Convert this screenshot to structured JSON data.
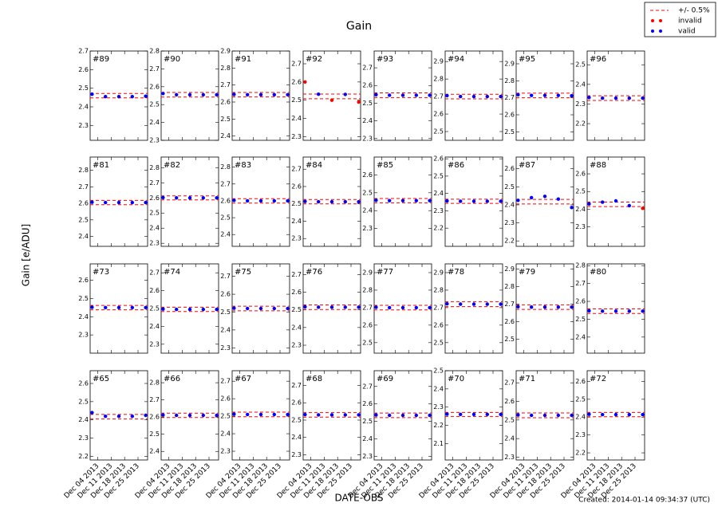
{
  "title": "Gain",
  "ylabel": "Gain [e/ADU]",
  "xlabel": "DATE-OBS",
  "footnote": "Created: 2014-01-14 09:34:37 (UTC)",
  "legend": [
    {
      "name": "+/- 0.5%",
      "color": "#ff0000"
    },
    {
      "name": "invalid",
      "color": "#ff0000"
    },
    {
      "name": "valid",
      "color": "#0000ff"
    }
  ],
  "x": [
    "2013-12-01",
    "2013-12-08",
    "2013-12-15",
    "2013-12-22",
    "2013-12-29"
  ],
  "xlim": [
    "2013-11-30",
    "2013-12-30"
  ],
  "xticks": [
    {
      "value": "2013-12-04",
      "label": "Dec 04 2013"
    },
    {
      "value": "2013-12-11",
      "label": "Dec 11 2013"
    },
    {
      "value": "2013-12-18",
      "label": "Dec 18 2013"
    },
    {
      "value": "2013-12-25",
      "label": "Dec 25 2013"
    }
  ],
  "chart_data": [
    {
      "type": "scatter",
      "title": "#89",
      "ylim": [
        2.22,
        2.7
      ],
      "yticks": [
        2.3,
        2.4,
        2.5,
        2.6,
        2.7
      ],
      "band": [
        2.448,
        2.472
      ],
      "valid": [
        2.468,
        2.455,
        2.455,
        2.455,
        2.457
      ]
    },
    {
      "type": "scatter",
      "title": "#90",
      "ylim": [
        2.3,
        2.8
      ],
      "yticks": [
        2.3,
        2.4,
        2.5,
        2.6,
        2.7,
        2.8
      ],
      "band": [
        2.542,
        2.568
      ],
      "valid": [
        2.562,
        2.555,
        2.555,
        2.555,
        2.555
      ]
    },
    {
      "type": "scatter",
      "title": "#91",
      "ylim": [
        2.375,
        2.9
      ],
      "yticks": [
        2.4,
        2.5,
        2.6,
        2.7,
        2.8,
        2.9
      ],
      "band": [
        2.63,
        2.656
      ],
      "valid": [
        2.645,
        2.643,
        2.643,
        2.643,
        2.643
      ]
    },
    {
      "type": "scatter",
      "title": "#92",
      "ylim": [
        2.28,
        2.77
      ],
      "yticks": [
        2.3,
        2.4,
        2.5,
        2.6,
        2.7
      ],
      "band": [
        2.508,
        2.534
      ],
      "valid": [
        null,
        2.533,
        null,
        2.532,
        null
      ],
      "invalid": [
        2.6,
        null,
        2.5,
        null,
        2.49
      ]
    },
    {
      "type": "scatter",
      "title": "#93",
      "ylim": [
        2.29,
        2.795
      ],
      "yticks": [
        2.3,
        2.4,
        2.5,
        2.6,
        2.7
      ],
      "band": [
        2.532,
        2.558
      ],
      "valid": [
        2.548,
        2.545,
        2.545,
        2.545,
        2.545
      ]
    },
    {
      "type": "scatter",
      "title": "#94",
      "ylim": [
        2.45,
        2.96
      ],
      "yticks": [
        2.5,
        2.6,
        2.7,
        2.8,
        2.9
      ],
      "band": [
        2.687,
        2.713
      ],
      "valid": [
        2.705,
        2.7,
        2.7,
        2.7,
        2.7
      ]
    },
    {
      "type": "scatter",
      "title": "#95",
      "ylim": [
        2.45,
        2.975
      ],
      "yticks": [
        2.5,
        2.6,
        2.7,
        2.8,
        2.9
      ],
      "band": [
        2.7,
        2.727
      ],
      "valid": [
        2.718,
        2.714,
        2.714,
        2.714,
        2.712
      ]
    },
    {
      "type": "scatter",
      "title": "#96",
      "ylim": [
        2.115,
        2.57
      ],
      "yticks": [
        2.2,
        2.3,
        2.4,
        2.5
      ],
      "band": [
        2.318,
        2.342
      ],
      "valid": [
        2.333,
        2.33,
        2.33,
        2.33,
        2.33
      ]
    },
    {
      "type": "scatter",
      "title": "#81",
      "ylim": [
        2.34,
        2.88
      ],
      "yticks": [
        2.4,
        2.5,
        2.6,
        2.7,
        2.8
      ],
      "band": [
        2.592,
        2.618
      ],
      "valid": [
        2.607,
        2.605,
        2.605,
        2.605,
        2.605
      ]
    },
    {
      "type": "scatter",
      "title": "#82",
      "ylim": [
        2.28,
        2.87
      ],
      "yticks": [
        2.3,
        2.4,
        2.5,
        2.6,
        2.7,
        2.8
      ],
      "band": [
        2.587,
        2.613
      ],
      "valid": [
        2.602,
        2.6,
        2.6,
        2.6,
        2.6
      ]
    },
    {
      "type": "scatter",
      "title": "#83",
      "ylim": [
        2.33,
        2.86
      ],
      "yticks": [
        2.4,
        2.5,
        2.6,
        2.7,
        2.8
      ],
      "band": [
        2.587,
        2.613
      ],
      "valid": [
        2.603,
        2.6,
        2.6,
        2.6,
        2.6
      ]
    },
    {
      "type": "scatter",
      "title": "#84",
      "ylim": [
        2.255,
        2.77
      ],
      "yticks": [
        2.3,
        2.4,
        2.5,
        2.6,
        2.7
      ],
      "band": [
        2.5,
        2.525
      ],
      "valid": [
        2.514,
        2.512,
        2.512,
        2.512,
        2.512
      ]
    },
    {
      "type": "scatter",
      "title": "#85",
      "ylim": [
        2.2,
        2.7
      ],
      "yticks": [
        2.3,
        2.4,
        2.5,
        2.6
      ],
      "band": [
        2.444,
        2.468
      ],
      "valid": [
        2.458,
        2.456,
        2.456,
        2.456,
        2.456
      ]
    },
    {
      "type": "scatter",
      "title": "#86",
      "ylim": [
        2.095,
        2.61
      ],
      "yticks": [
        2.2,
        2.3,
        2.4,
        2.5,
        2.6
      ],
      "band": [
        2.343,
        2.367
      ],
      "valid": [
        2.357,
        2.355,
        2.355,
        2.355,
        2.355
      ]
    },
    {
      "type": "scatter",
      "title": "#87",
      "ylim": [
        2.17,
        2.665
      ],
      "yticks": [
        2.2,
        2.3,
        2.4,
        2.5,
        2.6
      ],
      "band": [
        2.405,
        2.43
      ],
      "valid": [
        2.425,
        2.44,
        2.447,
        2.432,
        2.385
      ]
    },
    {
      "type": "scatter",
      "title": "#88",
      "ylim": [
        2.19,
        2.695
      ],
      "yticks": [
        2.3,
        2.4,
        2.5,
        2.6
      ],
      "band": [
        2.415,
        2.44
      ],
      "valid": [
        2.43,
        2.44,
        2.447,
        2.42,
        null
      ],
      "invalid": [
        null,
        null,
        null,
        null,
        2.405
      ]
    },
    {
      "type": "scatter",
      "title": "#73",
      "ylim": [
        2.2,
        2.69
      ],
      "yticks": [
        2.3,
        2.4,
        2.5,
        2.6
      ],
      "band": [
        2.438,
        2.462
      ],
      "valid": [
        2.452,
        2.45,
        2.45,
        2.45,
        2.45
      ]
    },
    {
      "type": "scatter",
      "title": "#74",
      "ylim": [
        2.25,
        2.75
      ],
      "yticks": [
        2.3,
        2.4,
        2.5,
        2.6,
        2.7
      ],
      "band": [
        2.483,
        2.507
      ],
      "valid": [
        2.497,
        2.495,
        2.495,
        2.495,
        2.495
      ]
    },
    {
      "type": "scatter",
      "title": "#75",
      "ylim": [
        2.27,
        2.77
      ],
      "yticks": [
        2.3,
        2.4,
        2.5,
        2.6,
        2.7
      ],
      "band": [
        2.507,
        2.533
      ],
      "valid": [
        2.522,
        2.52,
        2.52,
        2.52,
        2.52
      ]
    },
    {
      "type": "scatter",
      "title": "#76",
      "ylim": [
        2.255,
        2.76
      ],
      "yticks": [
        2.3,
        2.4,
        2.5,
        2.6,
        2.7
      ],
      "band": [
        2.502,
        2.528
      ],
      "valid": [
        2.517,
        2.515,
        2.515,
        2.515,
        2.515
      ]
    },
    {
      "type": "scatter",
      "title": "#77",
      "ylim": [
        2.44,
        2.95
      ],
      "yticks": [
        2.5,
        2.6,
        2.7,
        2.8,
        2.9
      ],
      "band": [
        2.687,
        2.713
      ],
      "valid": [
        2.702,
        2.7,
        2.7,
        2.7,
        2.7
      ]
    },
    {
      "type": "scatter",
      "title": "#78",
      "ylim": [
        2.44,
        2.95
      ],
      "yticks": [
        2.5,
        2.6,
        2.7,
        2.8,
        2.9
      ],
      "band": [
        2.706,
        2.734
      ],
      "valid": [
        2.722,
        2.72,
        2.72,
        2.72,
        2.72
      ]
    },
    {
      "type": "scatter",
      "title": "#79",
      "ylim": [
        2.42,
        2.93
      ],
      "yticks": [
        2.5,
        2.6,
        2.7,
        2.8,
        2.9
      ],
      "band": [
        2.67,
        2.696
      ],
      "valid": [
        2.685,
        2.683,
        2.683,
        2.683,
        2.683
      ]
    },
    {
      "type": "scatter",
      "title": "#80",
      "ylim": [
        2.31,
        2.81
      ],
      "yticks": [
        2.4,
        2.5,
        2.6,
        2.7,
        2.8
      ],
      "band": [
        2.532,
        2.558
      ],
      "valid": [
        2.547,
        2.545,
        2.545,
        2.545,
        2.545
      ]
    },
    {
      "type": "scatter",
      "title": "#65",
      "ylim": [
        2.18,
        2.67
      ],
      "yticks": [
        2.2,
        2.3,
        2.4,
        2.5,
        2.6
      ],
      "band": [
        2.405,
        2.43
      ],
      "valid": [
        2.44,
        2.42,
        2.42,
        2.42,
        2.425
      ]
    },
    {
      "type": "scatter",
      "title": "#66",
      "ylim": [
        2.35,
        2.87
      ],
      "yticks": [
        2.4,
        2.5,
        2.6,
        2.7,
        2.8
      ],
      "band": [
        2.597,
        2.623
      ],
      "valid": [
        2.612,
        2.61,
        2.61,
        2.61,
        2.61
      ]
    },
    {
      "type": "scatter",
      "title": "#67",
      "ylim": [
        2.25,
        2.76
      ],
      "yticks": [
        2.3,
        2.4,
        2.5,
        2.6,
        2.7
      ],
      "band": [
        2.497,
        2.523
      ],
      "valid": [
        2.512,
        2.51,
        2.51,
        2.51,
        2.51
      ]
    },
    {
      "type": "scatter",
      "title": "#68",
      "ylim": [
        2.27,
        2.785
      ],
      "yticks": [
        2.3,
        2.4,
        2.5,
        2.6,
        2.7
      ],
      "band": [
        2.517,
        2.543
      ],
      "valid": [
        2.532,
        2.53,
        2.53,
        2.53,
        2.53
      ]
    },
    {
      "type": "scatter",
      "title": "#69",
      "ylim": [
        2.28,
        2.79
      ],
      "yticks": [
        2.3,
        2.4,
        2.5,
        2.6,
        2.7
      ],
      "band": [
        2.522,
        2.548
      ],
      "valid": [
        2.537,
        2.535,
        2.535,
        2.535,
        2.535
      ]
    },
    {
      "type": "scatter",
      "title": "#70",
      "ylim": [
        2.01,
        2.5
      ],
      "yticks": [
        2.1,
        2.2,
        2.3,
        2.4,
        2.5
      ],
      "band": [
        2.249,
        2.271
      ],
      "valid": [
        2.262,
        2.26,
        2.26,
        2.26,
        2.26
      ]
    },
    {
      "type": "scatter",
      "title": "#71",
      "ylim": [
        2.285,
        2.765
      ],
      "yticks": [
        2.3,
        2.4,
        2.5,
        2.6,
        2.7
      ],
      "band": [
        2.512,
        2.538
      ],
      "valid": [
        2.527,
        2.525,
        2.525,
        2.525,
        2.525
      ]
    },
    {
      "type": "scatter",
      "title": "#72",
      "ylim": [
        2.16,
        2.66
      ],
      "yticks": [
        2.2,
        2.3,
        2.4,
        2.5,
        2.6
      ],
      "band": [
        2.402,
        2.426
      ],
      "valid": [
        2.416,
        2.414,
        2.414,
        2.414,
        2.414
      ]
    }
  ]
}
